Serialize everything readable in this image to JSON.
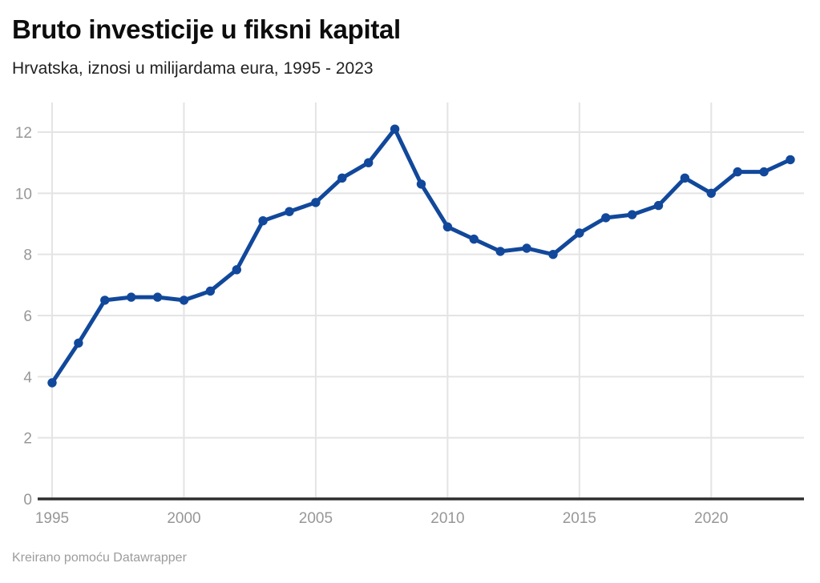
{
  "header": {
    "title": "Bruto investicije u fiksni kapital",
    "subtitle": "Hrvatska, iznosi u milijardama eura, 1995 - 2023"
  },
  "footer": {
    "attribution": "Kreirano pomoću Datawrapper"
  },
  "colors": {
    "line": "#11489b",
    "marker": "#11489b",
    "gridline": "#e4e4e4",
    "baseline": "#2e2e2e",
    "tick_text": "#979797",
    "title_text": "#0d0d0d",
    "subtitle_text": "#222222",
    "background": "#ffffff"
  },
  "chart_data": {
    "type": "line",
    "title": "Bruto investicije u fiksni kapital",
    "subtitle": "Hrvatska, iznosi u milijardama eura, 1995 - 2023",
    "x": [
      1995,
      1996,
      1997,
      1998,
      1999,
      2000,
      2001,
      2002,
      2003,
      2004,
      2005,
      2006,
      2007,
      2008,
      2009,
      2010,
      2011,
      2012,
      2013,
      2014,
      2015,
      2016,
      2017,
      2018,
      2019,
      2020,
      2021,
      2022,
      2023
    ],
    "values": [
      3.8,
      5.1,
      6.5,
      6.6,
      6.6,
      6.5,
      6.8,
      7.5,
      9.1,
      9.4,
      9.7,
      10.5,
      11.0,
      12.1,
      10.3,
      8.9,
      8.5,
      8.1,
      8.2,
      8.0,
      8.7,
      9.2,
      9.3,
      9.6,
      10.5,
      10.0,
      10.7,
      10.7,
      11.1
    ],
    "xlabel": "",
    "ylabel": "",
    "xlim": [
      1995,
      2023
    ],
    "ylim": [
      0,
      13
    ],
    "x_ticks": [
      1995,
      2000,
      2005,
      2010,
      2015,
      2020
    ],
    "y_ticks": [
      0,
      2,
      4,
      6,
      8,
      10,
      12
    ],
    "grid": true,
    "legend": false,
    "marker": "circle"
  }
}
